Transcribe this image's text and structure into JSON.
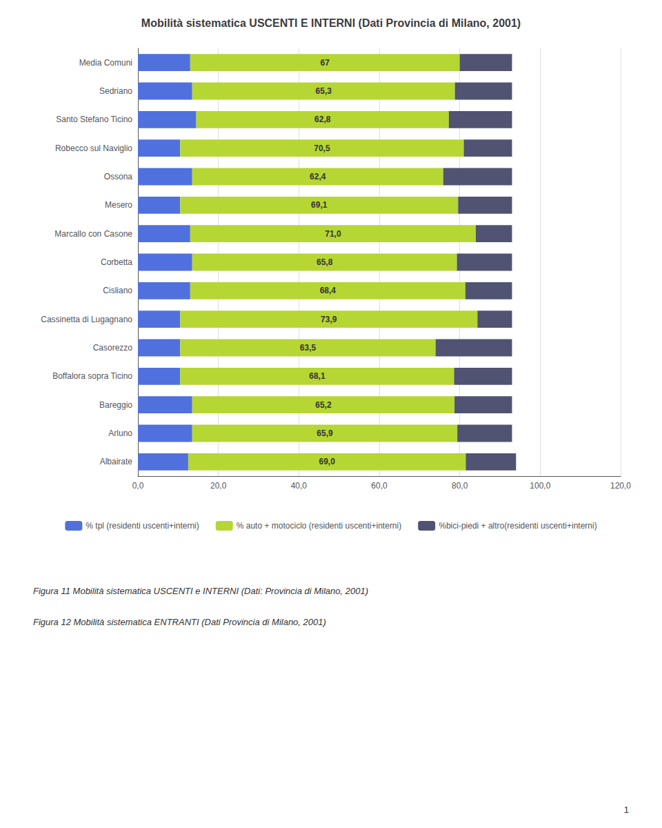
{
  "chart_data": {
    "type": "bar",
    "orientation": "horizontal",
    "stacked": true,
    "title": "Mobilità sistematica USCENTI E INTERNI (Dati Provincia di Milano, 2001)",
    "categories": [
      "Media Comuni",
      "Sedriano",
      "Santo Stefano Ticino",
      "Robecco sul Naviglio",
      "Ossona",
      "Mesero",
      "Marcallo con Casone",
      "Corbetta",
      "Cisliano",
      "Cassinetta di Lugagnano",
      "Casorezzo",
      "Boffalora sopra Ticino",
      "Bareggio",
      "Arluno",
      "Albairate"
    ],
    "series": [
      {
        "name": "% tpl (residenti uscenti+interni)",
        "values": [
          13.0,
          13.5,
          14.5,
          10.5,
          13.5,
          10.5,
          13.0,
          13.5,
          13.0,
          10.5,
          10.5,
          10.5,
          13.5,
          13.5,
          12.5
        ]
      },
      {
        "name": "% auto + motociclo (residenti uscenti+interni)",
        "values": [
          67.0,
          65.3,
          62.8,
          70.5,
          62.4,
          69.1,
          71.0,
          65.8,
          68.4,
          73.9,
          63.5,
          68.1,
          65.2,
          65.9,
          69.0
        ],
        "data_labels": true,
        "value_labels": [
          "67",
          "65,3",
          "62,8",
          "70,5",
          "62,4",
          "69,1",
          "71,0",
          "65,8",
          "68,4",
          "73,9",
          "63,5",
          "68,1",
          "65,2",
          "65,9",
          "69,0"
        ]
      },
      {
        "name": "%bici-piedi + altro(residenti uscenti+interni)",
        "values": [
          13.0,
          14.2,
          15.7,
          12.0,
          17.1,
          13.4,
          9.0,
          13.7,
          11.6,
          8.6,
          19.0,
          14.4,
          14.3,
          13.6,
          12.5
        ]
      }
    ],
    "xlim": [
      0,
      120
    ],
    "xticks": [
      {
        "value": 0,
        "label": "0,0"
      },
      {
        "value": 20,
        "label": "20,0"
      },
      {
        "value": 40,
        "label": "40,0"
      },
      {
        "value": 60,
        "label": "60,0"
      },
      {
        "value": 80,
        "label": "80,0"
      },
      {
        "value": 100,
        "label": "100,0"
      },
      {
        "value": 120,
        "label": "120,0"
      }
    ],
    "grid": true,
    "legend": "bottom",
    "annotations": [
      "Figura 11 Mobilità sistematica USCENTI e INTERNI (Dati: Provincia di Milano, 2001)",
      "Figura 12 Mobilità sistematica ENTRANTI (Dati Provincia di Milano, 2001)",
      "1"
    ]
  }
}
